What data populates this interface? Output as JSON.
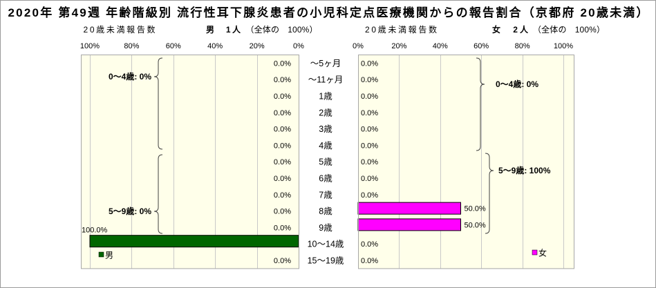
{
  "chart_data": {
    "type": "bar",
    "orientation": "horizontal",
    "title": "2020年 第49週 年齢階級別 流行性耳下腺炎患者の小児科定点医療機関からの報告割合（京都府 20歳未満）",
    "categories": [
      "～5ヶ月",
      "～11ヶ月",
      "1歳",
      "2歳",
      "3歳",
      "4歳",
      "5歳",
      "6歳",
      "7歳",
      "8歳",
      "9歳",
      "10～14歳",
      "15～19歳"
    ],
    "xlim": [
      0,
      100
    ],
    "grid": true,
    "legend": "bottom",
    "series": [
      {
        "name": "男",
        "color": "#006600",
        "caption": "20歳未満報告数",
        "count_label": "男　1人",
        "share_label": "（全体の　100%）",
        "ticks": [
          "100%",
          "80%",
          "60%",
          "40%",
          "20%",
          "0%"
        ],
        "values": [
          0,
          0,
          0,
          0,
          0,
          0,
          0,
          0,
          0,
          0,
          0,
          100,
          0
        ],
        "group_labels": [
          "0～4歳: 0%",
          "5～9歳: 0%"
        ]
      },
      {
        "name": "女",
        "color": "#FF00FF",
        "caption": "20歳未満報告数",
        "count_label": "女　2人",
        "share_label": "（全体の　100%）",
        "ticks": [
          "0%",
          "20%",
          "40%",
          "60%",
          "80%",
          "100%"
        ],
        "values": [
          0,
          0,
          0,
          0,
          0,
          0,
          0,
          0,
          0,
          50,
          50,
          0,
          0
        ],
        "group_labels": [
          "0～4歳: 0%",
          "5～9歳: 100%"
        ]
      }
    ]
  }
}
